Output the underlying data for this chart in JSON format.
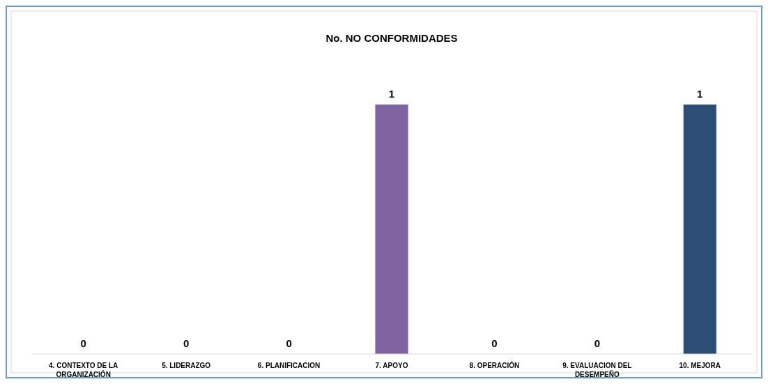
{
  "chart_data": {
    "type": "bar",
    "title": "No. NO CONFORMIDADES",
    "categories": [
      "4. CONTEXTO DE LA ORGANIZACIÓN",
      "5. LIDERAZGO",
      "6. PLANIFICACION",
      "7. APOYO",
      "8. OPERACIÓN",
      "9. EVALUACION DEL DESEMPEÑO",
      "10. MEJORA"
    ],
    "values": [
      0,
      0,
      0,
      1,
      0,
      0,
      1
    ],
    "colors": [
      "#4f81bd",
      "#c0504d",
      "#9bbb59",
      "#8064a2",
      "#4bacc6",
      "#f79646",
      "#2c4d75"
    ],
    "data_labels": true,
    "tick_labels": "x"
  }
}
